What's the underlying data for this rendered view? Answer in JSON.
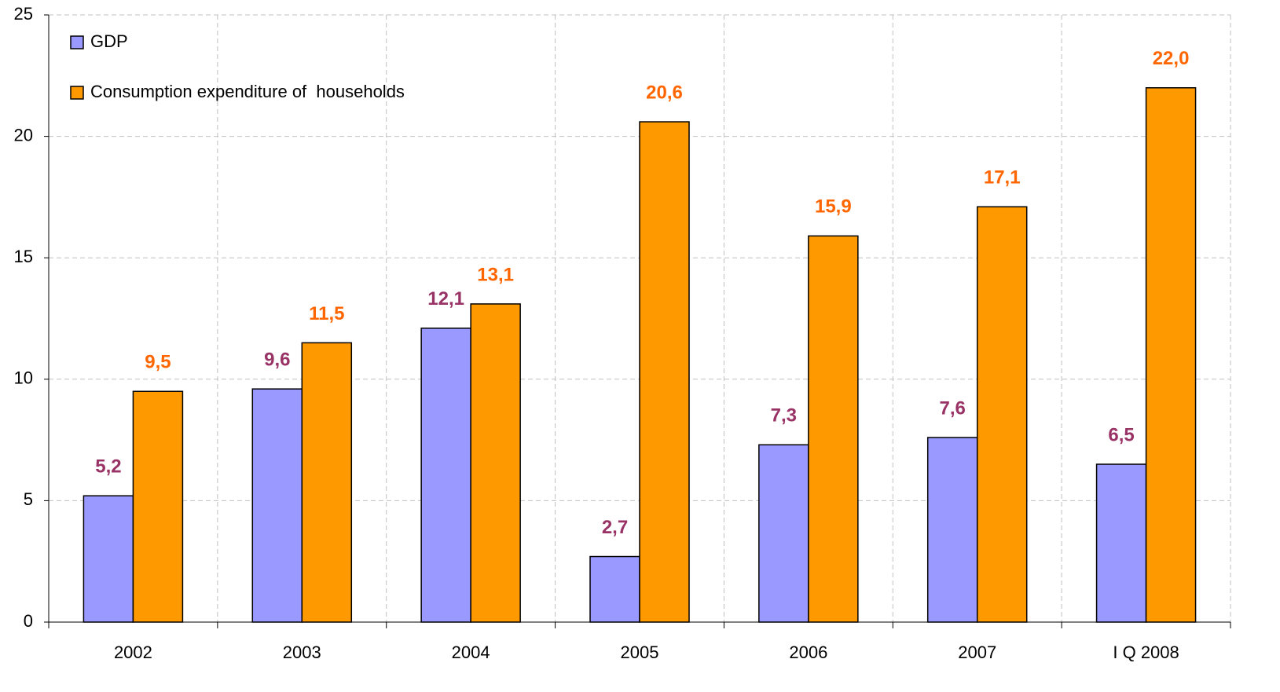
{
  "chart_data": {
    "type": "bar",
    "categories": [
      "2002",
      "2003",
      "2004",
      "2005",
      "2006",
      "2007",
      "I Q 2008"
    ],
    "series": [
      {
        "name": "GDP",
        "color": "#9999ff",
        "label_color": "#993366",
        "values": [
          5.2,
          9.6,
          12.1,
          2.7,
          7.3,
          7.6,
          6.5
        ],
        "value_labels": [
          "5,2",
          "9,6",
          "12,1",
          "2,7",
          "7,3",
          "7,6",
          "6,5"
        ]
      },
      {
        "name": "Consumption expenditure of  households",
        "color": "#ff9900",
        "label_color": "#ff6600",
        "values": [
          9.5,
          11.5,
          13.1,
          20.6,
          15.9,
          17.1,
          22.0
        ],
        "value_labels": [
          "9,5",
          "11,5",
          "13,1",
          "20,6",
          "15,9",
          "17,1",
          "22,0"
        ]
      }
    ],
    "ylim": [
      0,
      25
    ],
    "yticks": [
      0,
      5,
      10,
      15,
      20,
      25
    ],
    "grid": true,
    "legend": "upper left"
  }
}
